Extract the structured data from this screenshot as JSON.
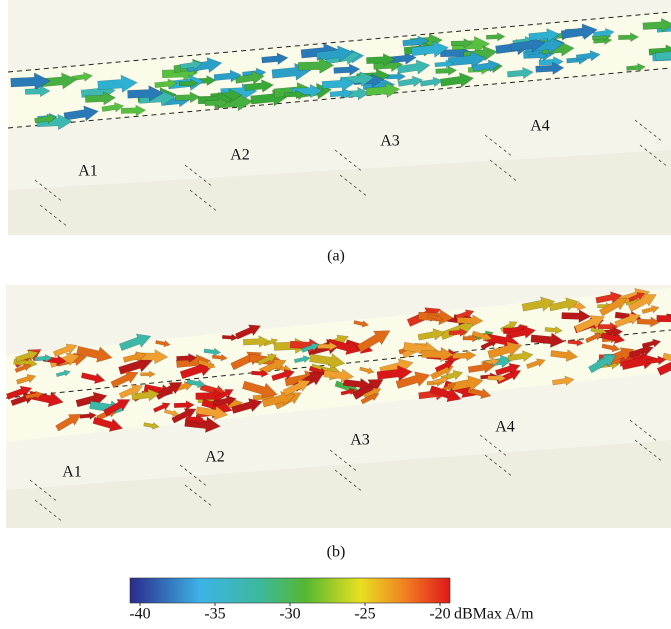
{
  "panels": [
    {
      "caption": "(a)",
      "labels": [
        "A1",
        "A2",
        "A3",
        "A4"
      ]
    },
    {
      "caption": "(b)",
      "labels": [
        "A1",
        "A2",
        "A3",
        "A4"
      ]
    }
  ],
  "colorbar": {
    "ticks": [
      -40,
      -35,
      -30,
      -25,
      -20
    ],
    "range": [
      -40,
      -20
    ],
    "unit": "dBMax A/m"
  }
}
